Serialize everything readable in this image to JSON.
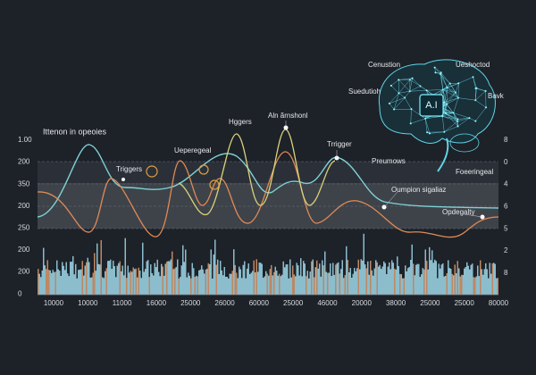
{
  "chart_title": "Ittenon in opeoies",
  "left_axis_labels": [
    "1.00",
    "200",
    "350",
    "200",
    "250",
    "200",
    "200",
    "0"
  ],
  "right_axis_labels": [
    "8",
    "0",
    "4",
    "6",
    "5",
    "2",
    "8"
  ],
  "bottom_axis_labels": [
    "10000",
    "10000",
    "11000",
    "16000",
    "25000",
    "26000",
    "60000",
    "25000",
    "46000",
    "20000",
    "38000",
    "25000",
    "25000",
    "80000"
  ],
  "annotations": [
    "Hggers",
    "Aln ãrnshonl",
    "Ueperegeal",
    "Triggers",
    "Trrigger",
    "Preumows",
    "Oumpion sigaliaz",
    "Opdegalty"
  ],
  "brain": {
    "chip": "A.I",
    "labels": [
      "Cenustion",
      "Ueshoctod",
      "Suedutioh",
      "Bavk",
      "Foeeringeal"
    ]
  }
}
